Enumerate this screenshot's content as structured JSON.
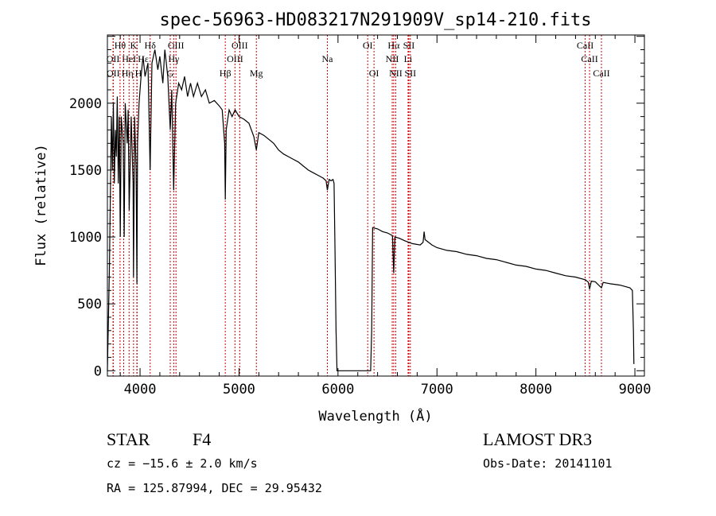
{
  "chart_data": {
    "type": "line",
    "title": "spec-56963-HD083217N291909V_sp14-210.fits",
    "xlabel": "Wavelength (Å)",
    "ylabel": "Flux (relative)",
    "xlim": [
      3670,
      9096
    ],
    "ylim": [
      -40,
      2510
    ],
    "x_ticks": [
      4000,
      5000,
      6000,
      7000,
      8000,
      9000
    ],
    "y_ticks": [
      0,
      500,
      1000,
      1500,
      2000
    ],
    "grid": false,
    "line_color": "#000000",
    "marker_color": "#cc0000",
    "series": [
      {
        "name": "spectrum",
        "points": [
          [
            3670,
            0
          ],
          [
            3690,
            750
          ],
          [
            3700,
            1300
          ],
          [
            3710,
            1900
          ],
          [
            3720,
            1500
          ],
          [
            3730,
            2000
          ],
          [
            3740,
            1400
          ],
          [
            3750,
            1800
          ],
          [
            3760,
            1600
          ],
          [
            3770,
            2050
          ],
          [
            3780,
            1400
          ],
          [
            3790,
            1900
          ],
          [
            3800,
            1000
          ],
          [
            3810,
            1900
          ],
          [
            3830,
            1700
          ],
          [
            3840,
            1000
          ],
          [
            3850,
            2000
          ],
          [
            3870,
            1700
          ],
          [
            3880,
            1950
          ],
          [
            3890,
            1200
          ],
          [
            3910,
            1900
          ],
          [
            3930,
            1400
          ],
          [
            3934,
            700
          ],
          [
            3945,
            1900
          ],
          [
            3960,
            1500
          ],
          [
            3968,
            650
          ],
          [
            3975,
            1700
          ],
          [
            3990,
            2000
          ],
          [
            4010,
            2200
          ],
          [
            4030,
            2350
          ],
          [
            4050,
            2200
          ],
          [
            4080,
            2300
          ],
          [
            4102,
            1500
          ],
          [
            4120,
            2300
          ],
          [
            4150,
            2400
          ],
          [
            4180,
            2250
          ],
          [
            4200,
            2350
          ],
          [
            4230,
            2150
          ],
          [
            4250,
            2400
          ],
          [
            4280,
            2200
          ],
          [
            4305,
            1800
          ],
          [
            4320,
            2100
          ],
          [
            4340,
            1350
          ],
          [
            4360,
            2000
          ],
          [
            4390,
            2150
          ],
          [
            4420,
            2100
          ],
          [
            4450,
            2200
          ],
          [
            4480,
            2050
          ],
          [
            4510,
            2150
          ],
          [
            4540,
            2050
          ],
          [
            4580,
            2150
          ],
          [
            4620,
            2050
          ],
          [
            4660,
            2100
          ],
          [
            4700,
            2000
          ],
          [
            4750,
            2020
          ],
          [
            4800,
            1980
          ],
          [
            4830,
            1950
          ],
          [
            4855,
            1700
          ],
          [
            4861,
            1280
          ],
          [
            4870,
            1800
          ],
          [
            4900,
            1950
          ],
          [
            4930,
            1900
          ],
          [
            4960,
            1950
          ],
          [
            5000,
            1900
          ],
          [
            5050,
            1880
          ],
          [
            5100,
            1850
          ],
          [
            5150,
            1750
          ],
          [
            5175,
            1650
          ],
          [
            5200,
            1780
          ],
          [
            5250,
            1760
          ],
          [
            5300,
            1730
          ],
          [
            5350,
            1700
          ],
          [
            5400,
            1650
          ],
          [
            5450,
            1620
          ],
          [
            5500,
            1600
          ],
          [
            5550,
            1580
          ],
          [
            5600,
            1560
          ],
          [
            5650,
            1530
          ],
          [
            5700,
            1500
          ],
          [
            5750,
            1480
          ],
          [
            5800,
            1460
          ],
          [
            5850,
            1440
          ],
          [
            5880,
            1420
          ],
          [
            5893,
            1350
          ],
          [
            5910,
            1430
          ],
          [
            5930,
            1420
          ],
          [
            5950,
            1430
          ],
          [
            5960,
            1400
          ],
          [
            5970,
            900
          ],
          [
            5980,
            300
          ],
          [
            5990,
            0
          ],
          [
            6000,
            0
          ],
          [
            6330,
            0
          ],
          [
            6340,
            300
          ],
          [
            6350,
            1070
          ],
          [
            6400,
            1060
          ],
          [
            6450,
            1040
          ],
          [
            6500,
            1030
          ],
          [
            6550,
            1010
          ],
          [
            6563,
            730
          ],
          [
            6575,
            1000
          ],
          [
            6620,
            990
          ],
          [
            6680,
            970
          ],
          [
            6750,
            950
          ],
          [
            6830,
            940
          ],
          [
            6860,
            960
          ],
          [
            6870,
            1040
          ],
          [
            6880,
            980
          ],
          [
            6950,
            940
          ],
          [
            7000,
            920
          ],
          [
            7100,
            900
          ],
          [
            7200,
            890
          ],
          [
            7300,
            870
          ],
          [
            7400,
            860
          ],
          [
            7500,
            840
          ],
          [
            7600,
            830
          ],
          [
            7700,
            810
          ],
          [
            7800,
            790
          ],
          [
            7900,
            780
          ],
          [
            8000,
            760
          ],
          [
            8100,
            750
          ],
          [
            8200,
            730
          ],
          [
            8300,
            710
          ],
          [
            8400,
            700
          ],
          [
            8500,
            680
          ],
          [
            8530,
            660
          ],
          [
            8542,
            610
          ],
          [
            8560,
            670
          ],
          [
            8600,
            665
          ],
          [
            8662,
            620
          ],
          [
            8680,
            660
          ],
          [
            8750,
            650
          ],
          [
            8850,
            640
          ],
          [
            8950,
            620
          ],
          [
            8975,
            600
          ],
          [
            8985,
            300
          ],
          [
            8990,
            50
          ]
        ]
      }
    ],
    "line_markers": [
      {
        "label": "Hθ",
        "wave": 3798,
        "row": 0
      },
      {
        "label": "K",
        "wave": 3934,
        "row": 0
      },
      {
        "label": "Hδ",
        "wave": 4102,
        "row": 0
      },
      {
        "label": "OIII",
        "wave": 4363,
        "row": 0
      },
      {
        "label": "OIII",
        "wave": 5007,
        "row": 0
      },
      {
        "label": "OI",
        "wave": 6300,
        "row": 0
      },
      {
        "label": "Hα",
        "wave": 6563,
        "row": 0
      },
      {
        "label": "SII",
        "wave": 6716,
        "row": 0
      },
      {
        "label": "CaII",
        "wave": 8498,
        "row": 0
      },
      {
        "label": "OII",
        "wave": 3727,
        "row": 1
      },
      {
        "label": "HeI",
        "wave": 3889,
        "row": 1
      },
      {
        "label": "Hε",
        "wave": 3970,
        "row": 1
      },
      {
        "label": "Hγ",
        "wave": 4340,
        "row": 1
      },
      {
        "label": "OIII",
        "wave": 4959,
        "row": 1
      },
      {
        "label": "Na",
        "wave": 5893,
        "row": 1
      },
      {
        "label": "NII",
        "wave": 6548,
        "row": 1
      },
      {
        "label": "Li",
        "wave": 6708,
        "row": 1
      },
      {
        "label": "CaII",
        "wave": 8542,
        "row": 1
      },
      {
        "label": "OII",
        "wave": 3729,
        "row": 2
      },
      {
        "label": "Hη",
        "wave": 3835,
        "row": 2
      },
      {
        "label": "H",
        "wave": 3968,
        "row": 2
      },
      {
        "label": "G",
        "wave": 4305,
        "row": 2
      },
      {
        "label": "Hβ",
        "wave": 4861,
        "row": 2
      },
      {
        "label": "Mg",
        "wave": 5175,
        "row": 2
      },
      {
        "label": "OI",
        "wave": 6364,
        "row": 2
      },
      {
        "label": "NII",
        "wave": 6583,
        "row": 2
      },
      {
        "label": "SII",
        "wave": 6731,
        "row": 2
      },
      {
        "label": "CaII",
        "wave": 8662,
        "row": 2
      }
    ]
  },
  "info": {
    "object_class": "STAR",
    "subclass": "F4",
    "survey": "LAMOST DR3",
    "cz": "cz = −15.6 ± 2.0 km/s",
    "obs_date": "Obs-Date: 20141101",
    "radec": "RA = 125.87994, DEC =  29.95432"
  }
}
